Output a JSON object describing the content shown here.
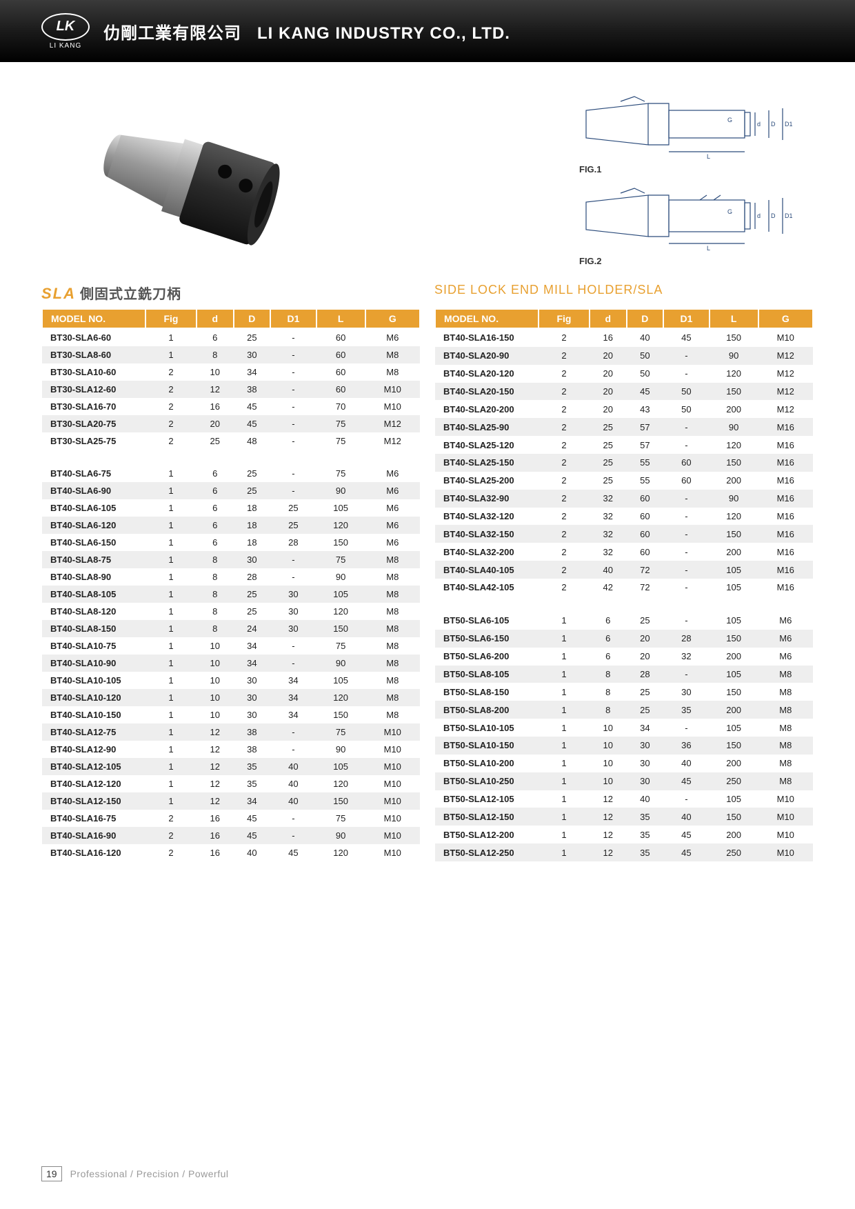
{
  "header": {
    "logo_letters": "LK",
    "logo_sub": "LI KANG",
    "company_cn": "仂剛工業有限公司",
    "company_en": "LI KANG INDUSTRY CO., LTD."
  },
  "figures": {
    "fig1_label": "FIG.1",
    "fig2_label": "FIG.2",
    "dim_d": "d",
    "dim_D": "D",
    "dim_D1": "D1",
    "dim_L": "L",
    "dim_G": "G"
  },
  "titles": {
    "sla_brand": "SLA",
    "sla_chinese": "側固式立銑刀柄",
    "english": "SIDE LOCK END MILL HOLDER/SLA"
  },
  "columns": [
    "MODEL NO.",
    "Fig",
    "d",
    "D",
    "D1",
    "L",
    "G"
  ],
  "left_rows": [
    [
      "BT30-SLA6-60",
      "1",
      "6",
      "25",
      "-",
      "60",
      "M6"
    ],
    [
      "BT30-SLA8-60",
      "1",
      "8",
      "30",
      "-",
      "60",
      "M8"
    ],
    [
      "BT30-SLA10-60",
      "2",
      "10",
      "34",
      "-",
      "60",
      "M8"
    ],
    [
      "BT30-SLA12-60",
      "2",
      "12",
      "38",
      "-",
      "60",
      "M10"
    ],
    [
      "BT30-SLA16-70",
      "2",
      "16",
      "45",
      "-",
      "70",
      "M10"
    ],
    [
      "BT30-SLA20-75",
      "2",
      "20",
      "45",
      "-",
      "75",
      "M12"
    ],
    [
      "BT30-SLA25-75",
      "2",
      "25",
      "48",
      "-",
      "75",
      "M12"
    ],
    "spacer",
    [
      "BT40-SLA6-75",
      "1",
      "6",
      "25",
      "-",
      "75",
      "M6"
    ],
    [
      "BT40-SLA6-90",
      "1",
      "6",
      "25",
      "-",
      "90",
      "M6"
    ],
    [
      "BT40-SLA6-105",
      "1",
      "6",
      "18",
      "25",
      "105",
      "M6"
    ],
    [
      "BT40-SLA6-120",
      "1",
      "6",
      "18",
      "25",
      "120",
      "M6"
    ],
    [
      "BT40-SLA6-150",
      "1",
      "6",
      "18",
      "28",
      "150",
      "M6"
    ],
    [
      "BT40-SLA8-75",
      "1",
      "8",
      "30",
      "-",
      "75",
      "M8"
    ],
    [
      "BT40-SLA8-90",
      "1",
      "8",
      "28",
      "-",
      "90",
      "M8"
    ],
    [
      "BT40-SLA8-105",
      "1",
      "8",
      "25",
      "30",
      "105",
      "M8"
    ],
    [
      "BT40-SLA8-120",
      "1",
      "8",
      "25",
      "30",
      "120",
      "M8"
    ],
    [
      "BT40-SLA8-150",
      "1",
      "8",
      "24",
      "30",
      "150",
      "M8"
    ],
    [
      "BT40-SLA10-75",
      "1",
      "10",
      "34",
      "-",
      "75",
      "M8"
    ],
    [
      "BT40-SLA10-90",
      "1",
      "10",
      "34",
      "-",
      "90",
      "M8"
    ],
    [
      "BT40-SLA10-105",
      "1",
      "10",
      "30",
      "34",
      "105",
      "M8"
    ],
    [
      "BT40-SLA10-120",
      "1",
      "10",
      "30",
      "34",
      "120",
      "M8"
    ],
    [
      "BT40-SLA10-150",
      "1",
      "10",
      "30",
      "34",
      "150",
      "M8"
    ],
    [
      "BT40-SLA12-75",
      "1",
      "12",
      "38",
      "-",
      "75",
      "M10"
    ],
    [
      "BT40-SLA12-90",
      "1",
      "12",
      "38",
      "-",
      "90",
      "M10"
    ],
    [
      "BT40-SLA12-105",
      "1",
      "12",
      "35",
      "40",
      "105",
      "M10"
    ],
    [
      "BT40-SLA12-120",
      "1",
      "12",
      "35",
      "40",
      "120",
      "M10"
    ],
    [
      "BT40-SLA12-150",
      "1",
      "12",
      "34",
      "40",
      "150",
      "M10"
    ],
    [
      "BT40-SLA16-75",
      "2",
      "16",
      "45",
      "-",
      "75",
      "M10"
    ],
    [
      "BT40-SLA16-90",
      "2",
      "16",
      "45",
      "-",
      "90",
      "M10"
    ],
    [
      "BT40-SLA16-120",
      "2",
      "16",
      "40",
      "45",
      "120",
      "M10"
    ]
  ],
  "right_rows": [
    [
      "BT40-SLA16-150",
      "2",
      "16",
      "40",
      "45",
      "150",
      "M10"
    ],
    [
      "BT40-SLA20-90",
      "2",
      "20",
      "50",
      "-",
      "90",
      "M12"
    ],
    [
      "BT40-SLA20-120",
      "2",
      "20",
      "50",
      "-",
      "120",
      "M12"
    ],
    [
      "BT40-SLA20-150",
      "2",
      "20",
      "45",
      "50",
      "150",
      "M12"
    ],
    [
      "BT40-SLA20-200",
      "2",
      "20",
      "43",
      "50",
      "200",
      "M12"
    ],
    [
      "BT40-SLA25-90",
      "2",
      "25",
      "57",
      "-",
      "90",
      "M16"
    ],
    [
      "BT40-SLA25-120",
      "2",
      "25",
      "57",
      "-",
      "120",
      "M16"
    ],
    [
      "BT40-SLA25-150",
      "2",
      "25",
      "55",
      "60",
      "150",
      "M16"
    ],
    [
      "BT40-SLA25-200",
      "2",
      "25",
      "55",
      "60",
      "200",
      "M16"
    ],
    [
      "BT40-SLA32-90",
      "2",
      "32",
      "60",
      "-",
      "90",
      "M16"
    ],
    [
      "BT40-SLA32-120",
      "2",
      "32",
      "60",
      "-",
      "120",
      "M16"
    ],
    [
      "BT40-SLA32-150",
      "2",
      "32",
      "60",
      "-",
      "150",
      "M16"
    ],
    [
      "BT40-SLA32-200",
      "2",
      "32",
      "60",
      "-",
      "200",
      "M16"
    ],
    [
      "BT40-SLA40-105",
      "2",
      "40",
      "72",
      "-",
      "105",
      "M16"
    ],
    [
      "BT40-SLA42-105",
      "2",
      "42",
      "72",
      "-",
      "105",
      "M16"
    ],
    "spacer",
    [
      "BT50-SLA6-105",
      "1",
      "6",
      "25",
      "-",
      "105",
      "M6"
    ],
    [
      "BT50-SLA6-150",
      "1",
      "6",
      "20",
      "28",
      "150",
      "M6"
    ],
    [
      "BT50-SLA6-200",
      "1",
      "6",
      "20",
      "32",
      "200",
      "M6"
    ],
    [
      "BT50-SLA8-105",
      "1",
      "8",
      "28",
      "-",
      "105",
      "M8"
    ],
    [
      "BT50-SLA8-150",
      "1",
      "8",
      "25",
      "30",
      "150",
      "M8"
    ],
    [
      "BT50-SLA8-200",
      "1",
      "8",
      "25",
      "35",
      "200",
      "M8"
    ],
    [
      "BT50-SLA10-105",
      "1",
      "10",
      "34",
      "-",
      "105",
      "M8"
    ],
    [
      "BT50-SLA10-150",
      "1",
      "10",
      "30",
      "36",
      "150",
      "M8"
    ],
    [
      "BT50-SLA10-200",
      "1",
      "10",
      "30",
      "40",
      "200",
      "M8"
    ],
    [
      "BT50-SLA10-250",
      "1",
      "10",
      "30",
      "45",
      "250",
      "M8"
    ],
    [
      "BT50-SLA12-105",
      "1",
      "12",
      "40",
      "-",
      "105",
      "M10"
    ],
    [
      "BT50-SLA12-150",
      "1",
      "12",
      "35",
      "40",
      "150",
      "M10"
    ],
    [
      "BT50-SLA12-200",
      "1",
      "12",
      "35",
      "45",
      "200",
      "M10"
    ],
    [
      "BT50-SLA12-250",
      "1",
      "12",
      "35",
      "45",
      "250",
      "M10"
    ]
  ],
  "footer": {
    "page": "19",
    "slogan": "Professional / Precision / Powerful"
  },
  "colors": {
    "accent": "#e8a030",
    "header_dark": "#1a1a1a",
    "row_alt": "#eeeeee"
  }
}
